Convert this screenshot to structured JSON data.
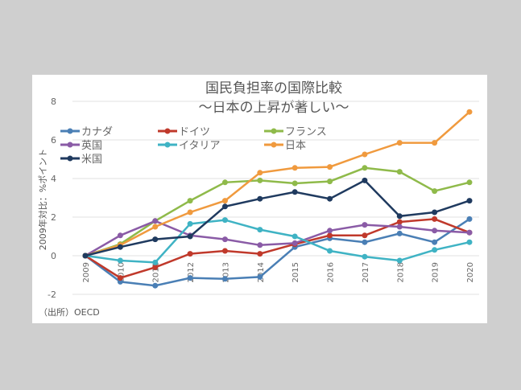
{
  "chart_data": {
    "type": "line",
    "title": "国民負担率の国際比較",
    "subtitle": "〜日本の上昇が著しい〜",
    "ylabel": "2009年対比：%ポイント",
    "xlabel": "",
    "source": "（出所）OECD",
    "categories": [
      "2009",
      "2010",
      "2011",
      "2012",
      "2013",
      "2014",
      "2015",
      "2016",
      "2017",
      "2018",
      "2019",
      "2020"
    ],
    "ylim": [
      -2,
      8
    ],
    "yticks": [
      "8",
      "6",
      "4",
      "2",
      "0",
      "-2"
    ],
    "grid": true,
    "legend_position": "top-left",
    "series": [
      {
        "name": "カナダ",
        "color": "#4a7fb5",
        "values": [
          0,
          -1.35,
          -1.55,
          -1.15,
          -1.2,
          -1.1,
          0.45,
          0.9,
          0.7,
          1.15,
          0.7,
          1.9
        ]
      },
      {
        "name": "ドイツ",
        "color": "#c0392b",
        "values": [
          0,
          -1.15,
          -0.6,
          0.1,
          0.25,
          0.1,
          0.6,
          1.05,
          1.05,
          1.75,
          1.9,
          1.2
        ]
      },
      {
        "name": "フランス",
        "color": "#8fba4a",
        "values": [
          0,
          0.6,
          1.8,
          2.85,
          3.8,
          3.9,
          3.75,
          3.85,
          4.55,
          4.35,
          3.35,
          3.8
        ]
      },
      {
        "name": "英国",
        "color": "#8a5ba6",
        "values": [
          0,
          1.05,
          1.8,
          1.05,
          0.85,
          0.55,
          0.65,
          1.3,
          1.6,
          1.5,
          1.3,
          1.2
        ]
      },
      {
        "name": "イタリア",
        "color": "#3fb3c4",
        "values": [
          0,
          -0.25,
          -0.35,
          1.65,
          1.85,
          1.35,
          1.0,
          0.25,
          -0.05,
          -0.25,
          0.3,
          0.7
        ]
      },
      {
        "name": "日本",
        "color": "#f09a3e",
        "values": [
          0,
          0.55,
          1.5,
          2.25,
          2.85,
          4.3,
          4.55,
          4.6,
          5.25,
          5.85,
          5.85,
          7.45
        ]
      },
      {
        "name": "米国",
        "color": "#1f3a5f",
        "values": [
          0,
          0.45,
          0.85,
          1.0,
          2.55,
          2.95,
          3.3,
          2.95,
          3.9,
          2.05,
          2.25,
          2.85
        ]
      }
    ]
  }
}
